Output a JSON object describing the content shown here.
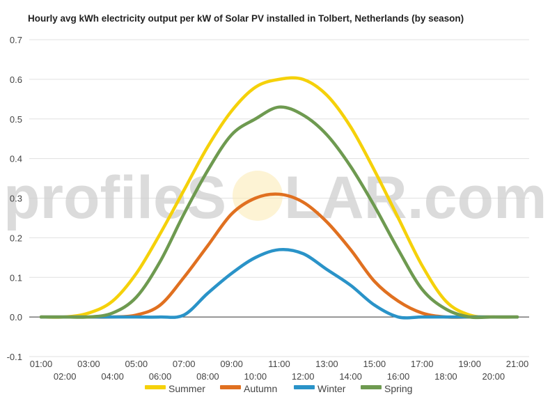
{
  "chart_data": {
    "type": "line",
    "title": "Hourly avg kWh electricity output per kW of Solar PV installed in Tolbert, Netherlands (by season)",
    "watermark": {
      "left": "profileS",
      "right": "LAR.com"
    },
    "x": [
      "01:00",
      "02:00",
      "03:00",
      "04:00",
      "05:00",
      "06:00",
      "07:00",
      "08:00",
      "09:00",
      "10:00",
      "11:00",
      "12:00",
      "13:00",
      "14:00",
      "15:00",
      "16:00",
      "17:00",
      "18:00",
      "19:00",
      "20:00",
      "21:00"
    ],
    "ylim": [
      -0.1,
      0.7
    ],
    "yticks": [
      -0.1,
      0.0,
      0.1,
      0.2,
      0.3,
      0.4,
      0.5,
      0.6,
      0.7
    ],
    "grid": true,
    "legend_position": "bottom",
    "series": [
      {
        "name": "Summer",
        "color": "#f5d10a",
        "values": [
          0.0,
          0.0,
          0.01,
          0.04,
          0.11,
          0.21,
          0.32,
          0.43,
          0.52,
          0.58,
          0.6,
          0.6,
          0.56,
          0.48,
          0.37,
          0.25,
          0.13,
          0.04,
          0.005,
          0.0,
          0.0
        ]
      },
      {
        "name": "Autumn",
        "color": "#e07020",
        "values": [
          0.0,
          0.0,
          0.0,
          0.0,
          0.005,
          0.03,
          0.1,
          0.18,
          0.26,
          0.3,
          0.31,
          0.29,
          0.24,
          0.17,
          0.09,
          0.04,
          0.01,
          0.0,
          0.0,
          0.0,
          0.0
        ]
      },
      {
        "name": "Winter",
        "color": "#2a93c8",
        "values": [
          0.0,
          0.0,
          0.0,
          0.0,
          0.0,
          0.0,
          0.005,
          0.06,
          0.11,
          0.15,
          0.17,
          0.16,
          0.12,
          0.08,
          0.03,
          0.0,
          0.0,
          0.0,
          0.0,
          0.0,
          0.0
        ]
      },
      {
        "name": "Spring",
        "color": "#6e9a50",
        "values": [
          0.0,
          0.0,
          0.0,
          0.01,
          0.05,
          0.14,
          0.26,
          0.37,
          0.46,
          0.5,
          0.53,
          0.51,
          0.46,
          0.38,
          0.28,
          0.17,
          0.07,
          0.02,
          0.0,
          0.0,
          0.0
        ]
      }
    ]
  }
}
